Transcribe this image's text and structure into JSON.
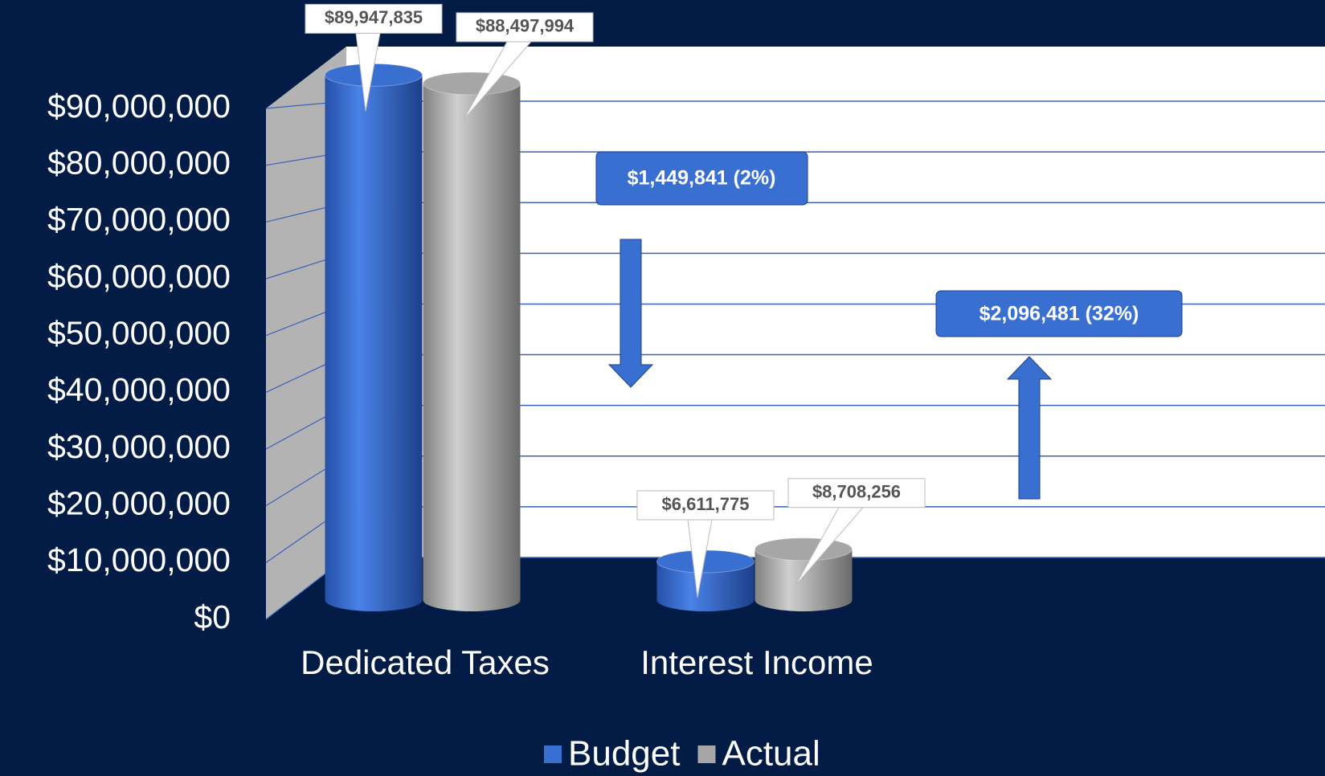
{
  "chart_data": {
    "type": "bar3d",
    "categories": [
      "Dedicated Taxes",
      "Interest Income"
    ],
    "series": [
      {
        "name": "Budget",
        "color": "#3a6fd2",
        "values": [
          89947835,
          6611775
        ],
        "value_labels": [
          "$89,947,835",
          "$6,611,775"
        ]
      },
      {
        "name": "Actual",
        "color": "#a6a6a6",
        "values": [
          88497994,
          8708256
        ],
        "value_labels": [
          "$88,497,994",
          "$8,708,256"
        ]
      }
    ],
    "ylim": [
      0,
      90000000
    ],
    "yticks": [
      {
        "value": 0,
        "label": "$0"
      },
      {
        "value": 10000000,
        "label": "$10,000,000"
      },
      {
        "value": 20000000,
        "label": "$20,000,000"
      },
      {
        "value": 30000000,
        "label": "$30,000,000"
      },
      {
        "value": 40000000,
        "label": "$40,000,000"
      },
      {
        "value": 50000000,
        "label": "$50,000,000"
      },
      {
        "value": 60000000,
        "label": "$60,000,000"
      },
      {
        "value": 70000000,
        "label": "$70,000,000"
      },
      {
        "value": 80000000,
        "label": "$80,000,000"
      },
      {
        "value": 90000000,
        "label": "$90,000,000"
      }
    ],
    "grid": true,
    "legend": "bottom",
    "annotations": [
      "$1,449,841 (2%)",
      "$2,096,481 (32%)"
    ]
  }
}
